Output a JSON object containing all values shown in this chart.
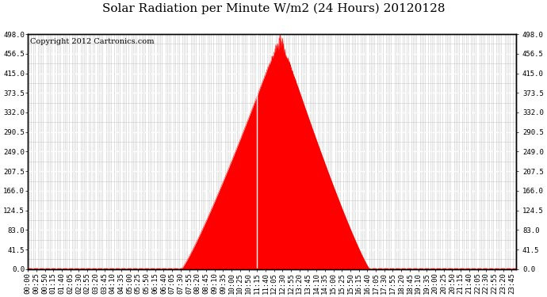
{
  "title": "Solar Radiation per Minute W/m2 (24 Hours) 20120128",
  "copyright_text": "Copyright 2012 Cartronics.com",
  "background_color": "#ffffff",
  "plot_bg_color": "#ffffff",
  "fill_color": "#ff0000",
  "line_color": "#ff0000",
  "dashed_line_color": "#ff0000",
  "white_grid_color": "#ffffff",
  "gray_grid_color": "#c8c8c8",
  "yticks": [
    0.0,
    41.5,
    83.0,
    124.5,
    166.0,
    207.5,
    249.0,
    290.5,
    332.0,
    373.5,
    415.0,
    456.5,
    498.0
  ],
  "ymax": 498.0,
  "ymin": 0.0,
  "total_minutes": 1440,
  "peak_minute": 743,
  "peak_value": 498.0,
  "sunrise_minute": 452,
  "sunset_minute": 1007,
  "title_fontsize": 11,
  "copyright_fontsize": 7,
  "tick_fontsize": 6.5,
  "xtick_step": 25
}
